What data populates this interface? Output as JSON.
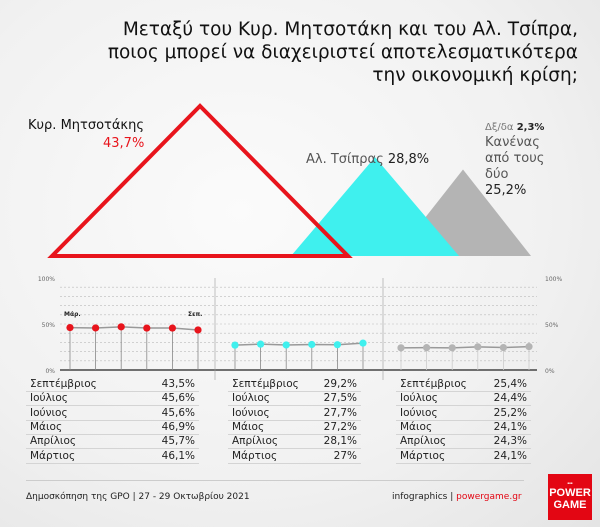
{
  "title": [
    "Μεταξύ του Κυρ. Μητσοτάκη και του Αλ. Τσίπρα,",
    "ποιος μπορεί να διαχειριστεί αποτελεσματικότερα",
    "την οικονομική κρίση;"
  ],
  "colors": {
    "mitsotakis": "#e8141c",
    "tsipras": "#3ff0ee",
    "none": "#b4b4b4",
    "accent": "#e30613"
  },
  "chart_data": [
    {
      "type": "area",
      "shape": "triangles",
      "categories": [
        "Κυρ. Μητσοτάκης",
        "Αλ. Τσίπρας",
        "Κανένας από τους δύο"
      ],
      "values": [
        43.7,
        28.8,
        25.2
      ],
      "labels": [
        "43,7%",
        "28,8%",
        "25,2%"
      ],
      "annotation": {
        "label": "Δξ/δα",
        "value": "2,3%"
      }
    },
    {
      "type": "line",
      "x": [
        "Μάρ.",
        "Απρ.",
        "Μάι.",
        "Ιούν.",
        "Ιούλ.",
        "Σεπ."
      ],
      "x_labels_shown": [
        "Μάρ.",
        "Σεπ."
      ],
      "yticks": [
        "0%",
        "50%",
        "100%"
      ],
      "ylim": [
        0,
        100
      ],
      "grid": true,
      "series": [
        {
          "name": "Κυρ. Μητσοτάκης",
          "values": [
            46.1,
            45.7,
            46.9,
            45.6,
            45.6,
            43.5
          ]
        },
        {
          "name": "Αλ. Τσίπρας",
          "values": [
            27,
            28.1,
            27.2,
            27.7,
            27.5,
            29.2
          ]
        },
        {
          "name": "Κανένας από τους δύο",
          "values": [
            24.1,
            24.3,
            24.1,
            25.2,
            24.4,
            25.4
          ]
        }
      ]
    }
  ],
  "labels": {
    "mitsotakis_name": "Κυρ. Μητσοτάκης",
    "mitsotakis_value": "43,7%",
    "tsipras_name": "Αλ. Τσίπρας",
    "tsipras_value": "28,8%",
    "none_dk_label": "Δξ/δα",
    "none_dk_value": "2,3%",
    "none_name_1": "Κανένας",
    "none_name_2": "από τους",
    "none_name_3": "δύο",
    "none_value": "25,2%",
    "x_first": "Μάρ.",
    "x_last": "Σεπ.",
    "y100": "100%",
    "y50": "50%",
    "y0": "0%"
  },
  "tables": [
    {
      "rows": [
        [
          "Σεπτέμβριος",
          "43,5%"
        ],
        [
          "Ιούλιος",
          "45,6%"
        ],
        [
          "Ιούνιος",
          "45,6%"
        ],
        [
          "Μάιος",
          "46,9%"
        ],
        [
          "Απρίλιος",
          "45,7%"
        ],
        [
          "Μάρτιος",
          "46,1%"
        ]
      ]
    },
    {
      "rows": [
        [
          "Σεπτέμβριος",
          "29,2%"
        ],
        [
          "Ιούλιος",
          "27,5%"
        ],
        [
          "Ιούνιος",
          "27,7%"
        ],
        [
          "Μάιος",
          "27,2%"
        ],
        [
          "Απρίλιος",
          "28,1%"
        ],
        [
          "Μάρτιος",
          "27%"
        ]
      ]
    },
    {
      "rows": [
        [
          "Σεπτέμβριος",
          "25,4%"
        ],
        [
          "Ιούλιος",
          "24,4%"
        ],
        [
          "Ιούνιος",
          "25,2%"
        ],
        [
          "Μάιος",
          "24,1%"
        ],
        [
          "Απρίλιος",
          "24,3%"
        ],
        [
          "Μάρτιος",
          "24,1%"
        ]
      ]
    }
  ],
  "footer": {
    "source": "Δημοσκόπηση της GPO | 27 - 29 Οκτωβρίου 2021",
    "credit": "infographics |",
    "site": "powergame.gr",
    "logo_top": "THE",
    "logo_1": "POWER",
    "logo_2": "GAME"
  }
}
